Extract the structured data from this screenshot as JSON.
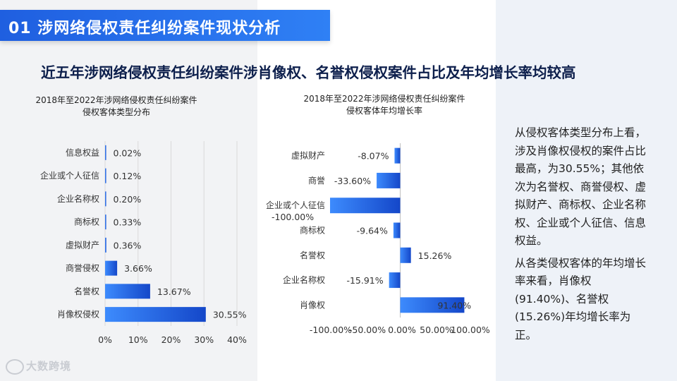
{
  "section_title": "01  涉网络侵权责任纠纷案件现状分析",
  "headline": "近五年涉网络侵权责任纠纷案件涉肖像权、名誉权侵权案件占比及年均增长率均较高",
  "chart_data": [
    {
      "type": "bar",
      "orientation": "horizontal",
      "title_line1": "2018年至2022年涉网络侵权责任纠纷案件",
      "title_line2": "侵权客体类型分布",
      "categories": [
        "信息权益",
        "企业或个人征信",
        "企业名称权",
        "商标权",
        "虚拟财产",
        "商誉侵权",
        "名誉权",
        "肖像权侵权"
      ],
      "values": [
        0.02,
        0.12,
        0.2,
        0.33,
        0.36,
        3.66,
        13.67,
        30.55
      ],
      "labels": [
        "0.02%",
        "0.12%",
        "0.20%",
        "0.33%",
        "0.36%",
        "3.66%",
        "13.67%",
        "30.55%"
      ],
      "xlim": [
        0,
        40
      ],
      "ticks": [
        "0%",
        "10%",
        "20%",
        "30%",
        "40%"
      ],
      "grid": true,
      "bar_color": "#1f5fe0"
    },
    {
      "type": "bar",
      "orientation": "horizontal",
      "title_line1": "2018年至2022年涉网络侵权责任纠纷案件",
      "title_line2": "侵权客体年均增长率",
      "categories": [
        "虚拟财产",
        "商誉",
        "企业或个人征信",
        "商标权",
        "名誉权",
        "企业名称权",
        "肖像权"
      ],
      "values": [
        -8.07,
        -33.6,
        -100.0,
        -9.64,
        15.26,
        -15.91,
        91.4
      ],
      "labels": [
        "-8.07%",
        "-33.60%",
        "-100.00%",
        "-9.64%",
        "15.26%",
        "-15.91%",
        "91.40%"
      ],
      "xlim": [
        -100,
        100
      ],
      "ticks": [
        "-100.00%",
        "-50.00%",
        "0.00%",
        "50.00%",
        "100.00%"
      ],
      "grid": false,
      "bar_color": "#1f5fe0"
    }
  ],
  "side_text": {
    "p1": "从侵权客体类型分布上看，涉及肖像权侵权的案件占比最高，为30.55%；其他依次为名誉权、商誉侵权、虚拟财产、商标权、企业名称权、企业或个人征信、信息权益。",
    "p2": "从各类侵权客体的年均增长率来看，肖像权(91.40%)、名誉权(15.26%)年均增长率为正。"
  },
  "logo_text": "大数跨境"
}
